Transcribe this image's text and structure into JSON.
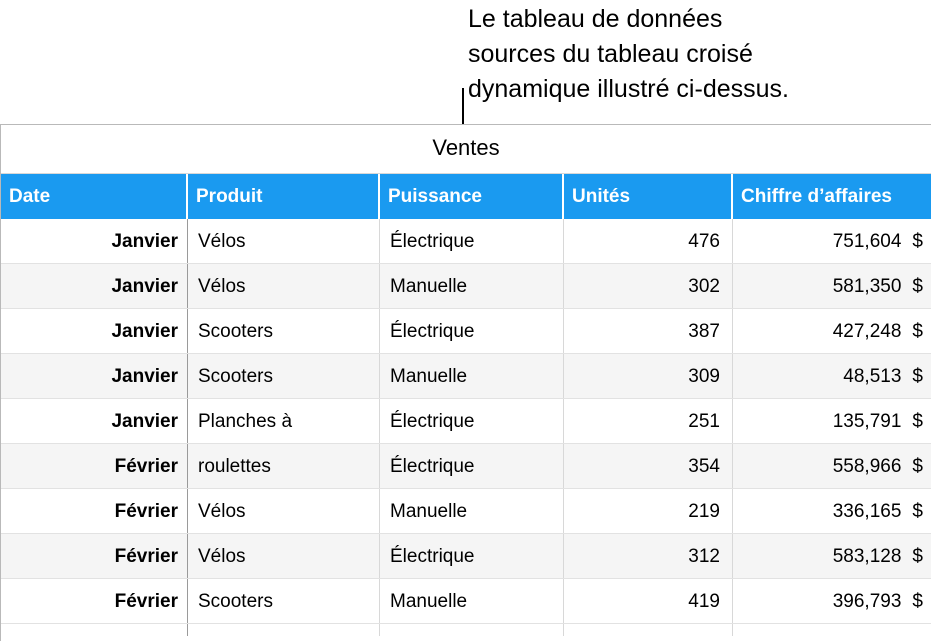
{
  "callout": {
    "text": "Le tableau de données\nsources du tableau croisé\ndynamique illustré ci-dessus."
  },
  "table": {
    "title": "Ventes",
    "headers": [
      "Date",
      "Produit",
      "Puissance",
      "Unités",
      "Chiffre d’affaires"
    ],
    "currency": "$",
    "rows": [
      [
        "Janvier",
        "Vélos",
        "Électrique",
        "476",
        "751,604"
      ],
      [
        "Janvier",
        "Vélos",
        "Manuelle",
        "302",
        "581,350"
      ],
      [
        "Janvier",
        "Scooters",
        "Électrique",
        "387",
        "427,248"
      ],
      [
        "Janvier",
        "Scooters",
        "Manuelle",
        "309",
        "48,513"
      ],
      [
        "Janvier",
        "Planches à",
        "Électrique",
        "251",
        "135,791"
      ],
      [
        "Février",
        "roulettes",
        "Électrique",
        "354",
        "558,966"
      ],
      [
        "Février",
        "Vélos",
        "Manuelle",
        "219",
        "336,165"
      ],
      [
        "Février",
        "Vélos",
        "Électrique",
        "312",
        "583,128"
      ],
      [
        "Février",
        "Scooters",
        "Manuelle",
        "419",
        "396,793"
      ]
    ]
  },
  "colors": {
    "header_background": "#1a9af0",
    "header_text": "#ffffff",
    "alt_row_background": "#f5f5f5"
  }
}
